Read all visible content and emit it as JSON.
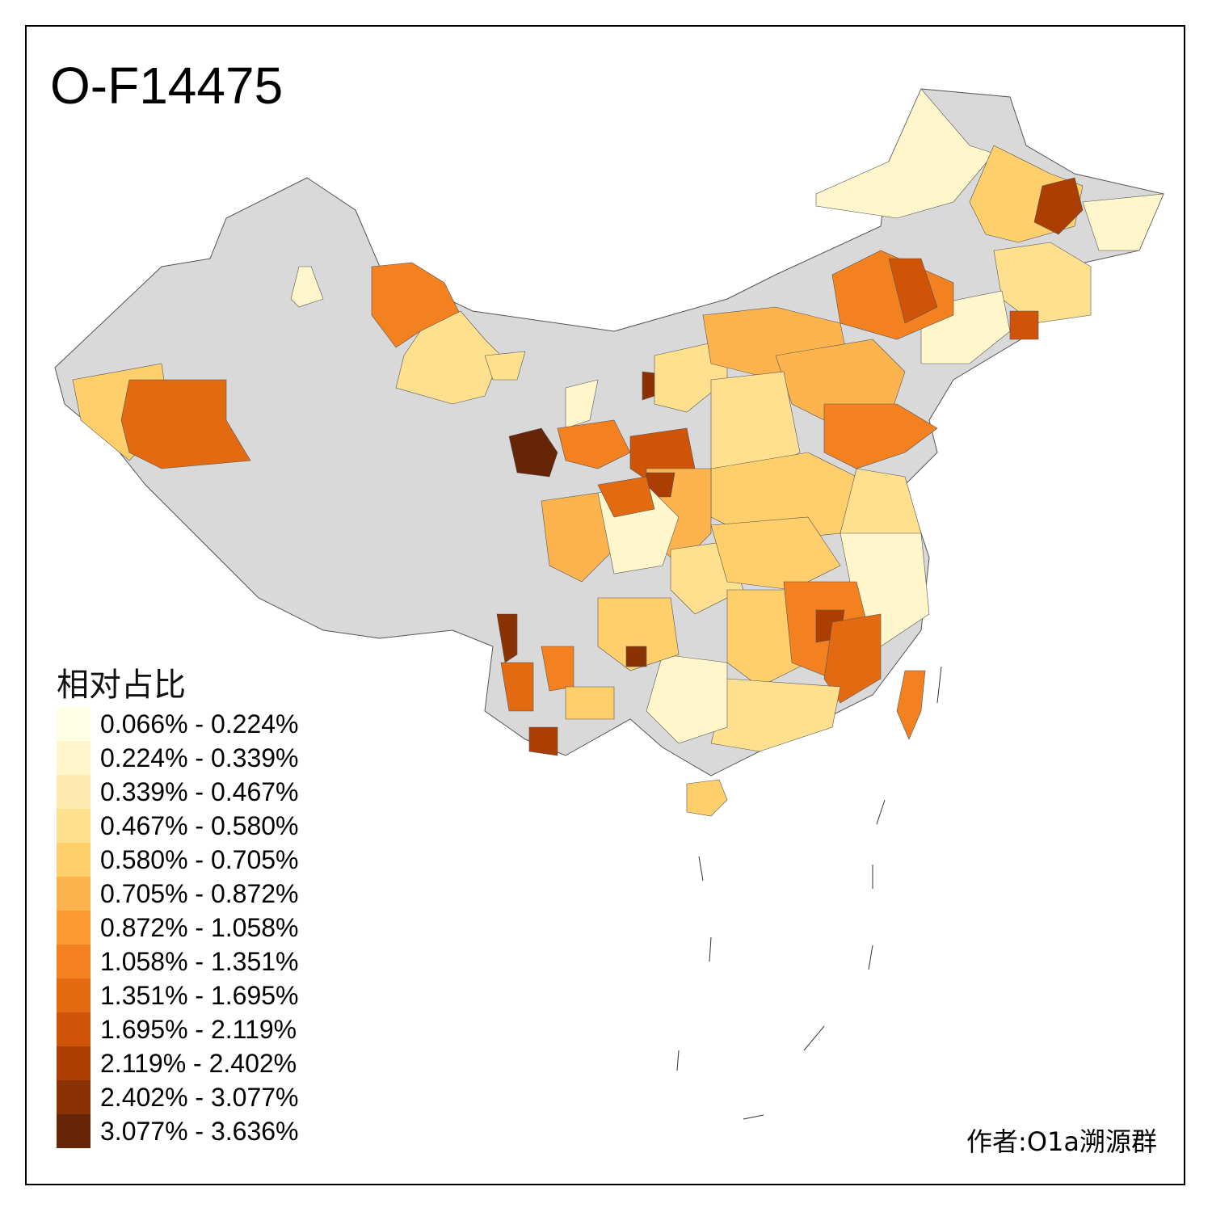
{
  "title": "O-F14475",
  "author": "作者:O1a溯源群",
  "legend": {
    "title": "相对占比",
    "items": [
      {
        "label": "0.066% - 0.224%",
        "color": "#ffffe5"
      },
      {
        "label": "0.224% - 0.339%",
        "color": "#fff6cc"
      },
      {
        "label": "0.339% - 0.467%",
        "color": "#feeab0"
      },
      {
        "label": "0.467% - 0.580%",
        "color": "#fee08f"
      },
      {
        "label": "0.580% - 0.705%",
        "color": "#fecf6a"
      },
      {
        "label": "0.705% - 0.872%",
        "color": "#feb44e"
      },
      {
        "label": "0.872% - 1.058%",
        "color": "#fd9a31"
      },
      {
        "label": "1.058% - 1.351%",
        "color": "#f4811f"
      },
      {
        "label": "1.351% - 1.695%",
        "color": "#e46a11"
      },
      {
        "label": "1.695% - 2.119%",
        "color": "#cf5407"
      },
      {
        "label": "2.119% - 2.402%",
        "color": "#ac3e04"
      },
      {
        "label": "2.402% - 3.077%",
        "color": "#8a3204"
      },
      {
        "label": "3.077% - 3.636%",
        "color": "#662506"
      }
    ]
  },
  "map_colors": {
    "no_data": "#d9d9d9",
    "border": "#555555"
  }
}
